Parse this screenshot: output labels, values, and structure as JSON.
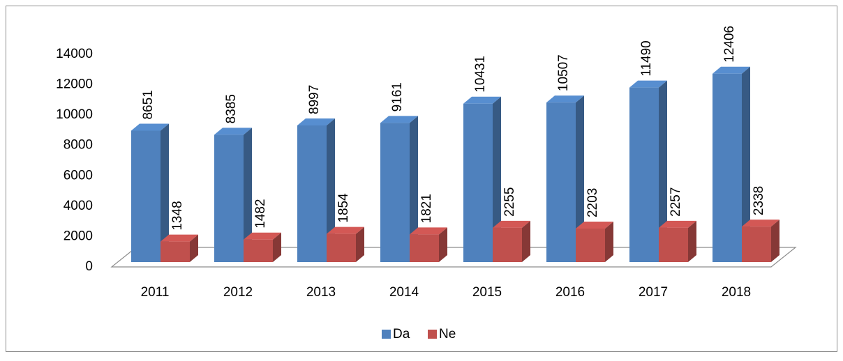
{
  "chart_data": {
    "type": "bar3d",
    "categories": [
      "2011",
      "2012",
      "2013",
      "2014",
      "2015",
      "2016",
      "2017",
      "2018"
    ],
    "series": [
      {
        "name": "Da",
        "color": "#4f81bd",
        "values": [
          8651,
          8385,
          8997,
          9161,
          10431,
          10507,
          11490,
          12406
        ]
      },
      {
        "name": "Ne",
        "color": "#c0504d",
        "values": [
          1348,
          1482,
          1854,
          1821,
          2255,
          2203,
          2257,
          2338
        ]
      }
    ],
    "ylim": [
      0,
      14000
    ],
    "yticks": [
      0,
      2000,
      4000,
      6000,
      8000,
      10000,
      12000,
      14000
    ],
    "legend": "bottom"
  }
}
